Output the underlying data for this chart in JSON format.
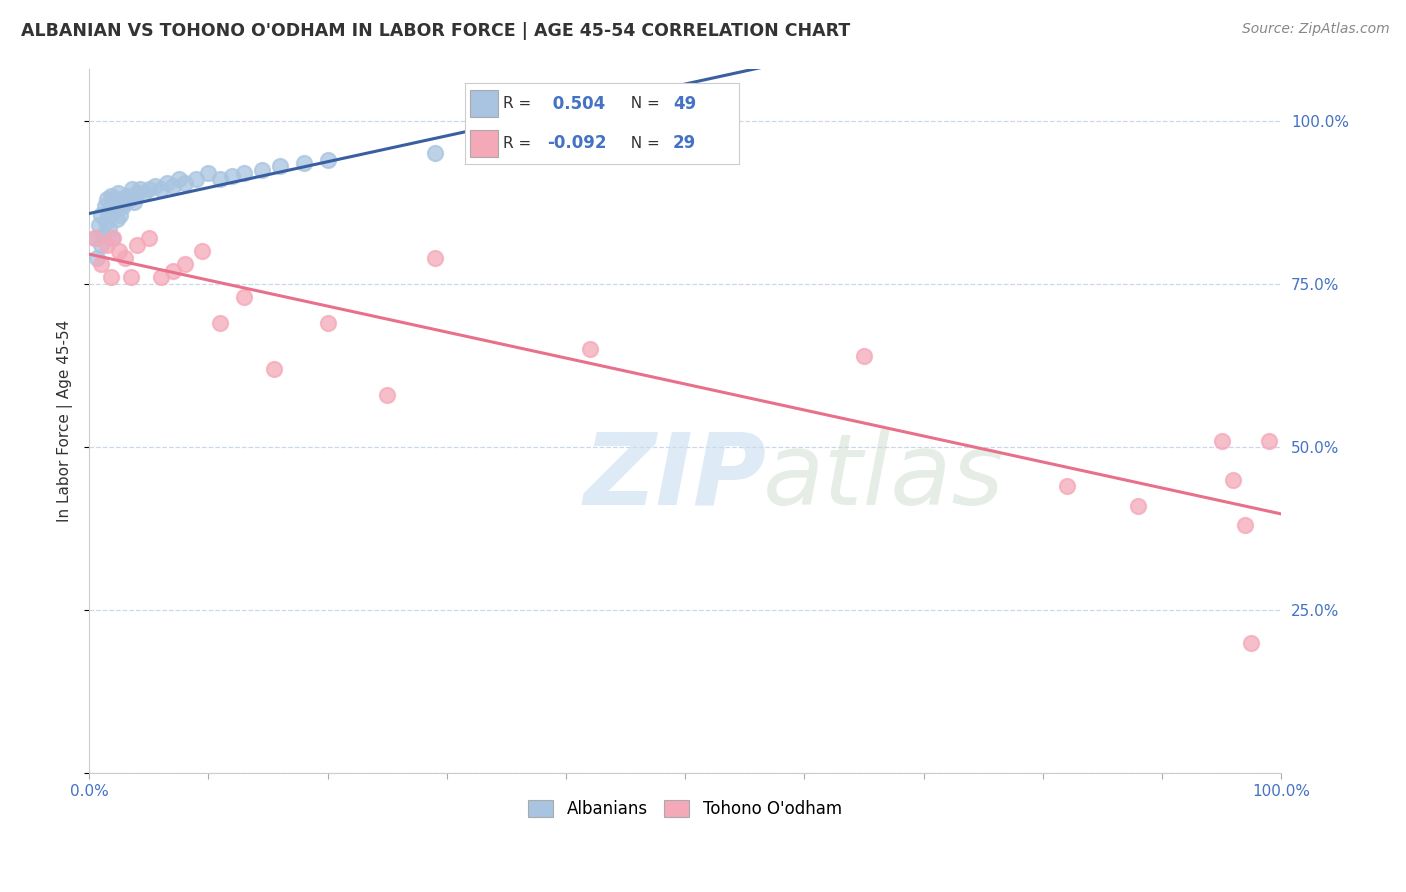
{
  "title": "ALBANIAN VS TOHONO O'ODHAM IN LABOR FORCE | AGE 45-54 CORRELATION CHART",
  "source": "Source: ZipAtlas.com",
  "ylabel": "In Labor Force | Age 45-54",
  "xlim": [
    0.0,
    1.0
  ],
  "ylim": [
    0.0,
    1.08
  ],
  "x_ticks": [
    0.0,
    0.1,
    0.2,
    0.3,
    0.4,
    0.5,
    0.6,
    0.7,
    0.8,
    0.9,
    1.0
  ],
  "x_tick_labels": [
    "0.0%",
    "",
    "",
    "",
    "",
    "",
    "",
    "",
    "",
    "",
    "100.0%"
  ],
  "y_ticks": [
    0.0,
    0.25,
    0.5,
    0.75,
    1.0
  ],
  "y_tick_labels_right": [
    "",
    "25.0%",
    "50.0%",
    "75.0%",
    "100.0%"
  ],
  "albanian_R": 0.504,
  "albanian_N": 49,
  "tohono_R": -0.092,
  "tohono_N": 29,
  "albanian_color": "#a8c4e0",
  "tohono_color": "#f4a8b8",
  "albanian_line_color": "#3a5fa0",
  "tohono_line_color": "#e8708a",
  "legend_box_albanian": "#a8c4e0",
  "legend_box_tohono": "#f4a8b8",
  "background_color": "#ffffff",
  "grid_color": "#c8d8e8",
  "albanian_x": [
    0.005,
    0.007,
    0.008,
    0.01,
    0.01,
    0.012,
    0.013,
    0.014,
    0.015,
    0.016,
    0.017,
    0.018,
    0.018,
    0.019,
    0.02,
    0.021,
    0.022,
    0.023,
    0.024,
    0.025,
    0.026,
    0.027,
    0.028,
    0.03,
    0.032,
    0.034,
    0.036,
    0.038,
    0.04,
    0.043,
    0.046,
    0.05,
    0.055,
    0.06,
    0.065,
    0.07,
    0.075,
    0.08,
    0.09,
    0.1,
    0.11,
    0.12,
    0.13,
    0.145,
    0.16,
    0.18,
    0.2,
    0.29,
    0.36
  ],
  "albanian_y": [
    0.82,
    0.79,
    0.84,
    0.81,
    0.855,
    0.825,
    0.87,
    0.845,
    0.88,
    0.855,
    0.835,
    0.87,
    0.885,
    0.82,
    0.86,
    0.88,
    0.87,
    0.85,
    0.89,
    0.875,
    0.855,
    0.88,
    0.87,
    0.875,
    0.885,
    0.88,
    0.895,
    0.875,
    0.89,
    0.895,
    0.89,
    0.895,
    0.9,
    0.895,
    0.905,
    0.9,
    0.91,
    0.905,
    0.91,
    0.92,
    0.91,
    0.915,
    0.92,
    0.925,
    0.93,
    0.935,
    0.94,
    0.95,
    0.96
  ],
  "tohono_x": [
    0.005,
    0.01,
    0.015,
    0.018,
    0.02,
    0.025,
    0.03,
    0.035,
    0.04,
    0.05,
    0.06,
    0.07,
    0.08,
    0.095,
    0.11,
    0.13,
    0.155,
    0.2,
    0.25,
    0.29,
    0.42,
    0.65,
    0.82,
    0.88,
    0.95,
    0.96,
    0.97,
    0.975,
    0.99
  ],
  "tohono_y": [
    0.82,
    0.78,
    0.81,
    0.76,
    0.82,
    0.8,
    0.79,
    0.76,
    0.81,
    0.82,
    0.76,
    0.77,
    0.78,
    0.8,
    0.69,
    0.73,
    0.62,
    0.69,
    0.58,
    0.79,
    0.65,
    0.64,
    0.44,
    0.41,
    0.51,
    0.45,
    0.38,
    0.2,
    0.51
  ]
}
